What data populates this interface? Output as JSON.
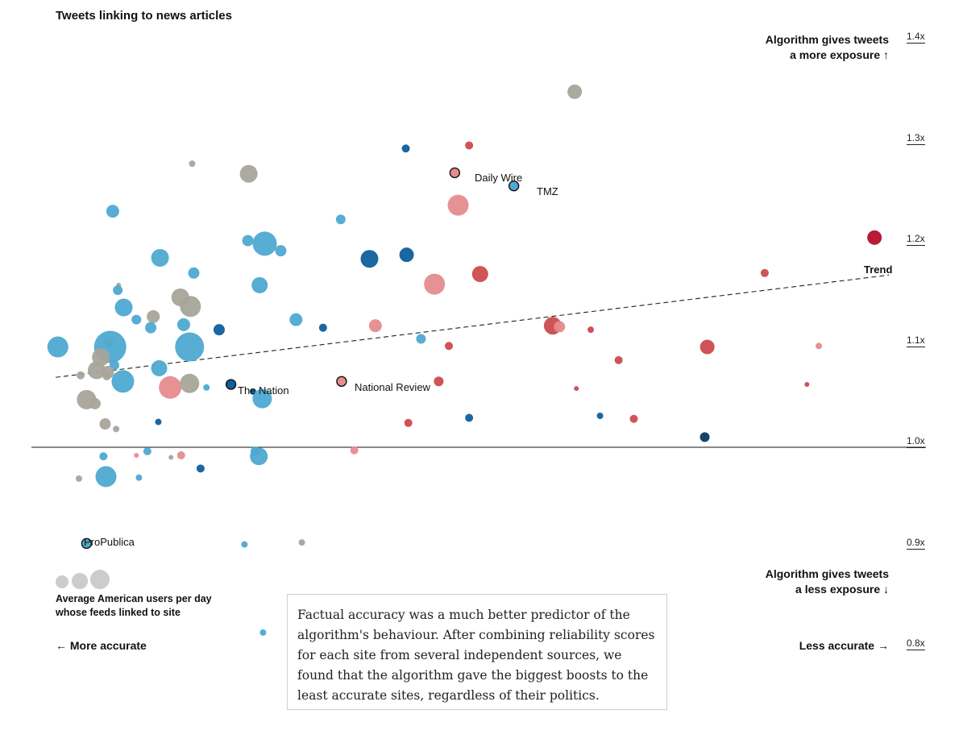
{
  "chart_data": {
    "type": "scatter",
    "title": "Tweets linking to news articles",
    "ylim": [
      0.8,
      1.4
    ],
    "y_scale": "linear",
    "grid": false,
    "x_direction": "left = more accurate, right = less accurate",
    "y_ticks": [
      "1.4x",
      "1.3x",
      "1.2x",
      "1.1x",
      "1.0x",
      "0.9x",
      "0.8x"
    ],
    "y_tick_values": [
      1.4,
      1.3,
      1.2,
      1.1,
      1.0,
      0.9,
      0.8
    ],
    "reference_line": {
      "y": 1.0
    },
    "trend": {
      "label": "Trend",
      "start": [
        0.0,
        1.064
      ],
      "end": [
        1.0,
        1.165
      ]
    },
    "colors": {
      "left": "#4ea9d1",
      "left_dark": "#0f5f9c",
      "navy": "#0b3a5e",
      "neutral": "#a8a49a",
      "right_light": "#e58c8f",
      "right": "#cc4a4e",
      "right_dark": "#b30f2a"
    },
    "highlighted": [
      {
        "name": "Daily Wire",
        "x": 0.486,
        "y": 1.266,
        "color": "#e58c8f"
      },
      {
        "name": "TMZ",
        "x": 0.556,
        "y": 1.253,
        "color": "#4ea9d1"
      },
      {
        "name": "The Nation",
        "x": 0.221,
        "y": 1.057,
        "color": "#0f5f9c"
      },
      {
        "name": "National Review",
        "x": 0.352,
        "y": 1.06,
        "color": "#e58c8f"
      },
      {
        "name": "ProPublica",
        "x": 0.05,
        "y": 0.9,
        "color": "#4ea9d1"
      }
    ],
    "points": [
      {
        "x": 0.628,
        "y": 1.346,
        "r": 9,
        "color": "#a8a49a"
      },
      {
        "x": 0.428,
        "y": 1.29,
        "r": 5,
        "color": "#0f5f9c"
      },
      {
        "x": 0.503,
        "y": 1.293,
        "r": 5,
        "color": "#cc4a4e"
      },
      {
        "x": 0.175,
        "y": 1.275,
        "r": 4,
        "color": "#a8a49a"
      },
      {
        "x": 0.242,
        "y": 1.265,
        "r": 11,
        "color": "#a8a49a"
      },
      {
        "x": 0.49,
        "y": 1.234,
        "r": 13,
        "color": "#e58c8f"
      },
      {
        "x": 0.081,
        "y": 1.228,
        "r": 8,
        "color": "#4ea9d1"
      },
      {
        "x": 0.351,
        "y": 1.22,
        "r": 6,
        "color": "#4ea9d1"
      },
      {
        "x": 0.241,
        "y": 1.199,
        "r": 7,
        "color": "#4ea9d1"
      },
      {
        "x": 0.261,
        "y": 1.196,
        "r": 15,
        "color": "#4ea9d1"
      },
      {
        "x": 0.28,
        "y": 1.189,
        "r": 7,
        "color": "#4ea9d1"
      },
      {
        "x": 0.137,
        "y": 1.182,
        "r": 11,
        "color": "#4ea9d1"
      },
      {
        "x": 0.385,
        "y": 1.181,
        "r": 11,
        "color": "#0f5f9c"
      },
      {
        "x": 0.429,
        "y": 1.185,
        "r": 9,
        "color": "#0f5f9c"
      },
      {
        "x": 0.983,
        "y": 1.202,
        "r": 9,
        "color": "#b30f2a"
      },
      {
        "x": 0.177,
        "y": 1.167,
        "r": 7,
        "color": "#4ea9d1"
      },
      {
        "x": 0.516,
        "y": 1.166,
        "r": 10,
        "color": "#cc4a4e"
      },
      {
        "x": 0.853,
        "y": 1.167,
        "r": 5,
        "color": "#cc4a4e"
      },
      {
        "x": 0.088,
        "y": 1.155,
        "r": 3,
        "color": "#a8a49a"
      },
      {
        "x": 0.087,
        "y": 1.15,
        "r": 6,
        "color": "#4ea9d1"
      },
      {
        "x": 0.255,
        "y": 1.155,
        "r": 10,
        "color": "#4ea9d1"
      },
      {
        "x": 0.462,
        "y": 1.156,
        "r": 13,
        "color": "#e58c8f"
      },
      {
        "x": 0.161,
        "y": 1.143,
        "r": 11,
        "color": "#a8a49a"
      },
      {
        "x": 0.173,
        "y": 1.134,
        "r": 13,
        "color": "#a8a49a"
      },
      {
        "x": 0.094,
        "y": 1.133,
        "r": 11,
        "color": "#4ea9d1"
      },
      {
        "x": 0.129,
        "y": 1.124,
        "r": 8,
        "color": "#a8a49a"
      },
      {
        "x": 0.109,
        "y": 1.121,
        "r": 6,
        "color": "#4ea9d1"
      },
      {
        "x": 0.298,
        "y": 1.121,
        "r": 8,
        "color": "#4ea9d1"
      },
      {
        "x": 0.165,
        "y": 1.116,
        "r": 8,
        "color": "#4ea9d1"
      },
      {
        "x": 0.126,
        "y": 1.113,
        "r": 7,
        "color": "#4ea9d1"
      },
      {
        "x": 0.207,
        "y": 1.111,
        "r": 7,
        "color": "#0f5f9c"
      },
      {
        "x": 0.33,
        "y": 1.113,
        "r": 5,
        "color": "#0f5f9c"
      },
      {
        "x": 0.392,
        "y": 1.115,
        "r": 8,
        "color": "#e58c8f"
      },
      {
        "x": 0.602,
        "y": 1.115,
        "r": 11,
        "color": "#cc4a4e"
      },
      {
        "x": 0.61,
        "y": 1.114,
        "r": 7,
        "color": "#e58c8f"
      },
      {
        "x": 0.647,
        "y": 1.111,
        "r": 4,
        "color": "#cc4a4e"
      },
      {
        "x": 0.446,
        "y": 1.102,
        "r": 6,
        "color": "#4ea9d1"
      },
      {
        "x": 0.077,
        "y": 1.098,
        "r": 6,
        "color": "#a8a49a"
      },
      {
        "x": 0.078,
        "y": 1.094,
        "r": 20,
        "color": "#4ea9d1"
      },
      {
        "x": 0.016,
        "y": 1.094,
        "r": 13,
        "color": "#4ea9d1"
      },
      {
        "x": 0.172,
        "y": 1.094,
        "r": 18,
        "color": "#4ea9d1"
      },
      {
        "x": 0.479,
        "y": 1.095,
        "r": 5,
        "color": "#cc4a4e"
      },
      {
        "x": 0.785,
        "y": 1.094,
        "r": 9,
        "color": "#cc4a4e"
      },
      {
        "x": 0.917,
        "y": 1.095,
        "r": 4,
        "color": "#e58c8f"
      },
      {
        "x": 0.067,
        "y": 1.084,
        "r": 11,
        "color": "#a8a49a"
      },
      {
        "x": 0.68,
        "y": 1.081,
        "r": 5,
        "color": "#cc4a4e"
      },
      {
        "x": 0.083,
        "y": 1.076,
        "r": 6,
        "color": "#4ea9d1"
      },
      {
        "x": 0.136,
        "y": 1.073,
        "r": 10,
        "color": "#4ea9d1"
      },
      {
        "x": 0.062,
        "y": 1.071,
        "r": 11,
        "color": "#a8a49a"
      },
      {
        "x": 0.075,
        "y": 1.069,
        "r": 8,
        "color": "#a8a49a"
      },
      {
        "x": 0.043,
        "y": 1.066,
        "r": 5,
        "color": "#a8a49a"
      },
      {
        "x": 0.074,
        "y": 1.065,
        "r": 5,
        "color": "#a8a49a"
      },
      {
        "x": 0.093,
        "y": 1.06,
        "r": 14,
        "color": "#4ea9d1"
      },
      {
        "x": 0.149,
        "y": 1.054,
        "r": 14,
        "color": "#e58c8f"
      },
      {
        "x": 0.172,
        "y": 1.058,
        "r": 12,
        "color": "#a8a49a"
      },
      {
        "x": 0.192,
        "y": 1.054,
        "r": 4,
        "color": "#4ea9d1"
      },
      {
        "x": 0.467,
        "y": 1.06,
        "r": 6,
        "color": "#cc4a4e"
      },
      {
        "x": 0.63,
        "y": 1.053,
        "r": 3,
        "color": "#cc4a4e"
      },
      {
        "x": 0.903,
        "y": 1.057,
        "r": 3,
        "color": "#cc4a4e"
      },
      {
        "x": 0.247,
        "y": 1.05,
        "r": 4,
        "color": "#0f5f9c"
      },
      {
        "x": 0.258,
        "y": 1.043,
        "r": 12,
        "color": "#4ea9d1"
      },
      {
        "x": 0.05,
        "y": 1.042,
        "r": 12,
        "color": "#a8a49a"
      },
      {
        "x": 0.06,
        "y": 1.038,
        "r": 7,
        "color": "#a8a49a"
      },
      {
        "x": 0.135,
        "y": 1.02,
        "r": 4,
        "color": "#0f5f9c"
      },
      {
        "x": 0.072,
        "y": 1.018,
        "r": 7,
        "color": "#a8a49a"
      },
      {
        "x": 0.085,
        "y": 1.013,
        "r": 4,
        "color": "#a8a49a"
      },
      {
        "x": 0.431,
        "y": 1.019,
        "r": 5,
        "color": "#cc4a4e"
      },
      {
        "x": 0.503,
        "y": 1.024,
        "r": 5,
        "color": "#0f5f9c"
      },
      {
        "x": 0.658,
        "y": 1.026,
        "r": 4,
        "color": "#0f5f9c"
      },
      {
        "x": 0.698,
        "y": 1.023,
        "r": 5,
        "color": "#cc4a4e"
      },
      {
        "x": 0.782,
        "y": 1.005,
        "r": 6,
        "color": "#0b3a5e"
      },
      {
        "x": 0.122,
        "y": 0.991,
        "r": 5,
        "color": "#4ea9d1"
      },
      {
        "x": 0.25,
        "y": 0.991,
        "r": 6,
        "color": "#4ea9d1"
      },
      {
        "x": 0.254,
        "y": 0.986,
        "r": 11,
        "color": "#4ea9d1"
      },
      {
        "x": 0.07,
        "y": 0.986,
        "r": 5,
        "color": "#4ea9d1"
      },
      {
        "x": 0.109,
        "y": 0.987,
        "r": 3,
        "color": "#e58c8f"
      },
      {
        "x": 0.15,
        "y": 0.985,
        "r": 3,
        "color": "#a8a49a"
      },
      {
        "x": 0.162,
        "y": 0.987,
        "r": 5,
        "color": "#e58c8f"
      },
      {
        "x": 0.367,
        "y": 0.992,
        "r": 5,
        "color": "#e58c8f"
      },
      {
        "x": 0.185,
        "y": 0.974,
        "r": 5,
        "color": "#0f5f9c"
      },
      {
        "x": 0.073,
        "y": 0.966,
        "r": 13,
        "color": "#4ea9d1"
      },
      {
        "x": 0.041,
        "y": 0.964,
        "r": 4,
        "color": "#a8a49a"
      },
      {
        "x": 0.112,
        "y": 0.965,
        "r": 4,
        "color": "#4ea9d1"
      },
      {
        "x": 0.237,
        "y": 0.899,
        "r": 4,
        "color": "#4ea9d1"
      },
      {
        "x": 0.305,
        "y": 0.901,
        "r": 4,
        "color": "#a8a49a"
      },
      {
        "x": 0.259,
        "y": 0.812,
        "r": 4,
        "color": "#4ea9d1"
      }
    ]
  },
  "hints": {
    "up_line1": "Algorithm gives tweets",
    "up_line2": "a more exposure ↑",
    "down_line1": "Algorithm gives tweets",
    "down_line2": "a less exposure ↓"
  },
  "legend": {
    "size_line1": "Average American users per day",
    "size_line2": "whose feeds linked to site",
    "swatch_color": "#cccccc"
  },
  "accuracy": {
    "more": "← More accurate",
    "less": "Less accurate →"
  },
  "note": "Factual accuracy was a much better predictor of the algorithm's behaviour. After combining reliability scores for each site from several independent sources, we found that the algorithm gave the biggest boosts to the least accurate sites, regardless of their politics."
}
